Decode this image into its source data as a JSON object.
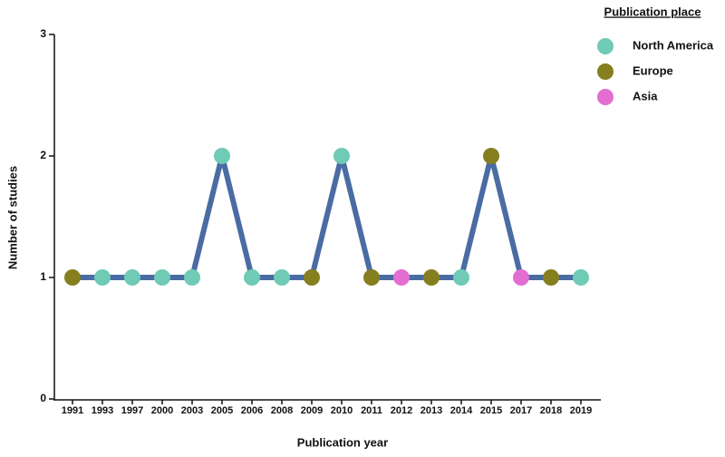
{
  "chart_data": {
    "type": "line",
    "xlabel": "Publication year",
    "ylabel": "Number of studies",
    "categories": [
      "1991",
      "1993",
      "1997",
      "2000",
      "2003",
      "2005",
      "2006",
      "2008",
      "2009",
      "2010",
      "2011",
      "2012",
      "2013",
      "2014",
      "2015",
      "2017",
      "2018",
      "2019"
    ],
    "line_color": "#4a6ca3",
    "series": [
      {
        "name": "North America",
        "color": "#6fcab6",
        "values": [
          null,
          1,
          1,
          1,
          1,
          2,
          1,
          1,
          null,
          2,
          null,
          null,
          null,
          1,
          null,
          null,
          null,
          1
        ]
      },
      {
        "name": "Europe",
        "color": "#857f1f",
        "values": [
          1,
          null,
          null,
          null,
          null,
          null,
          null,
          null,
          1,
          null,
          1,
          null,
          1,
          null,
          2,
          null,
          1,
          null
        ]
      },
      {
        "name": "Asia",
        "color": "#e26ed2",
        "values": [
          null,
          null,
          null,
          null,
          null,
          null,
          null,
          null,
          null,
          null,
          null,
          1,
          null,
          null,
          null,
          1,
          null,
          null
        ]
      }
    ],
    "legend_title": "Publication place",
    "legend_position": "upper right",
    "ylim": [
      0,
      3
    ],
    "yticks": [
      0,
      1,
      2,
      3
    ]
  }
}
